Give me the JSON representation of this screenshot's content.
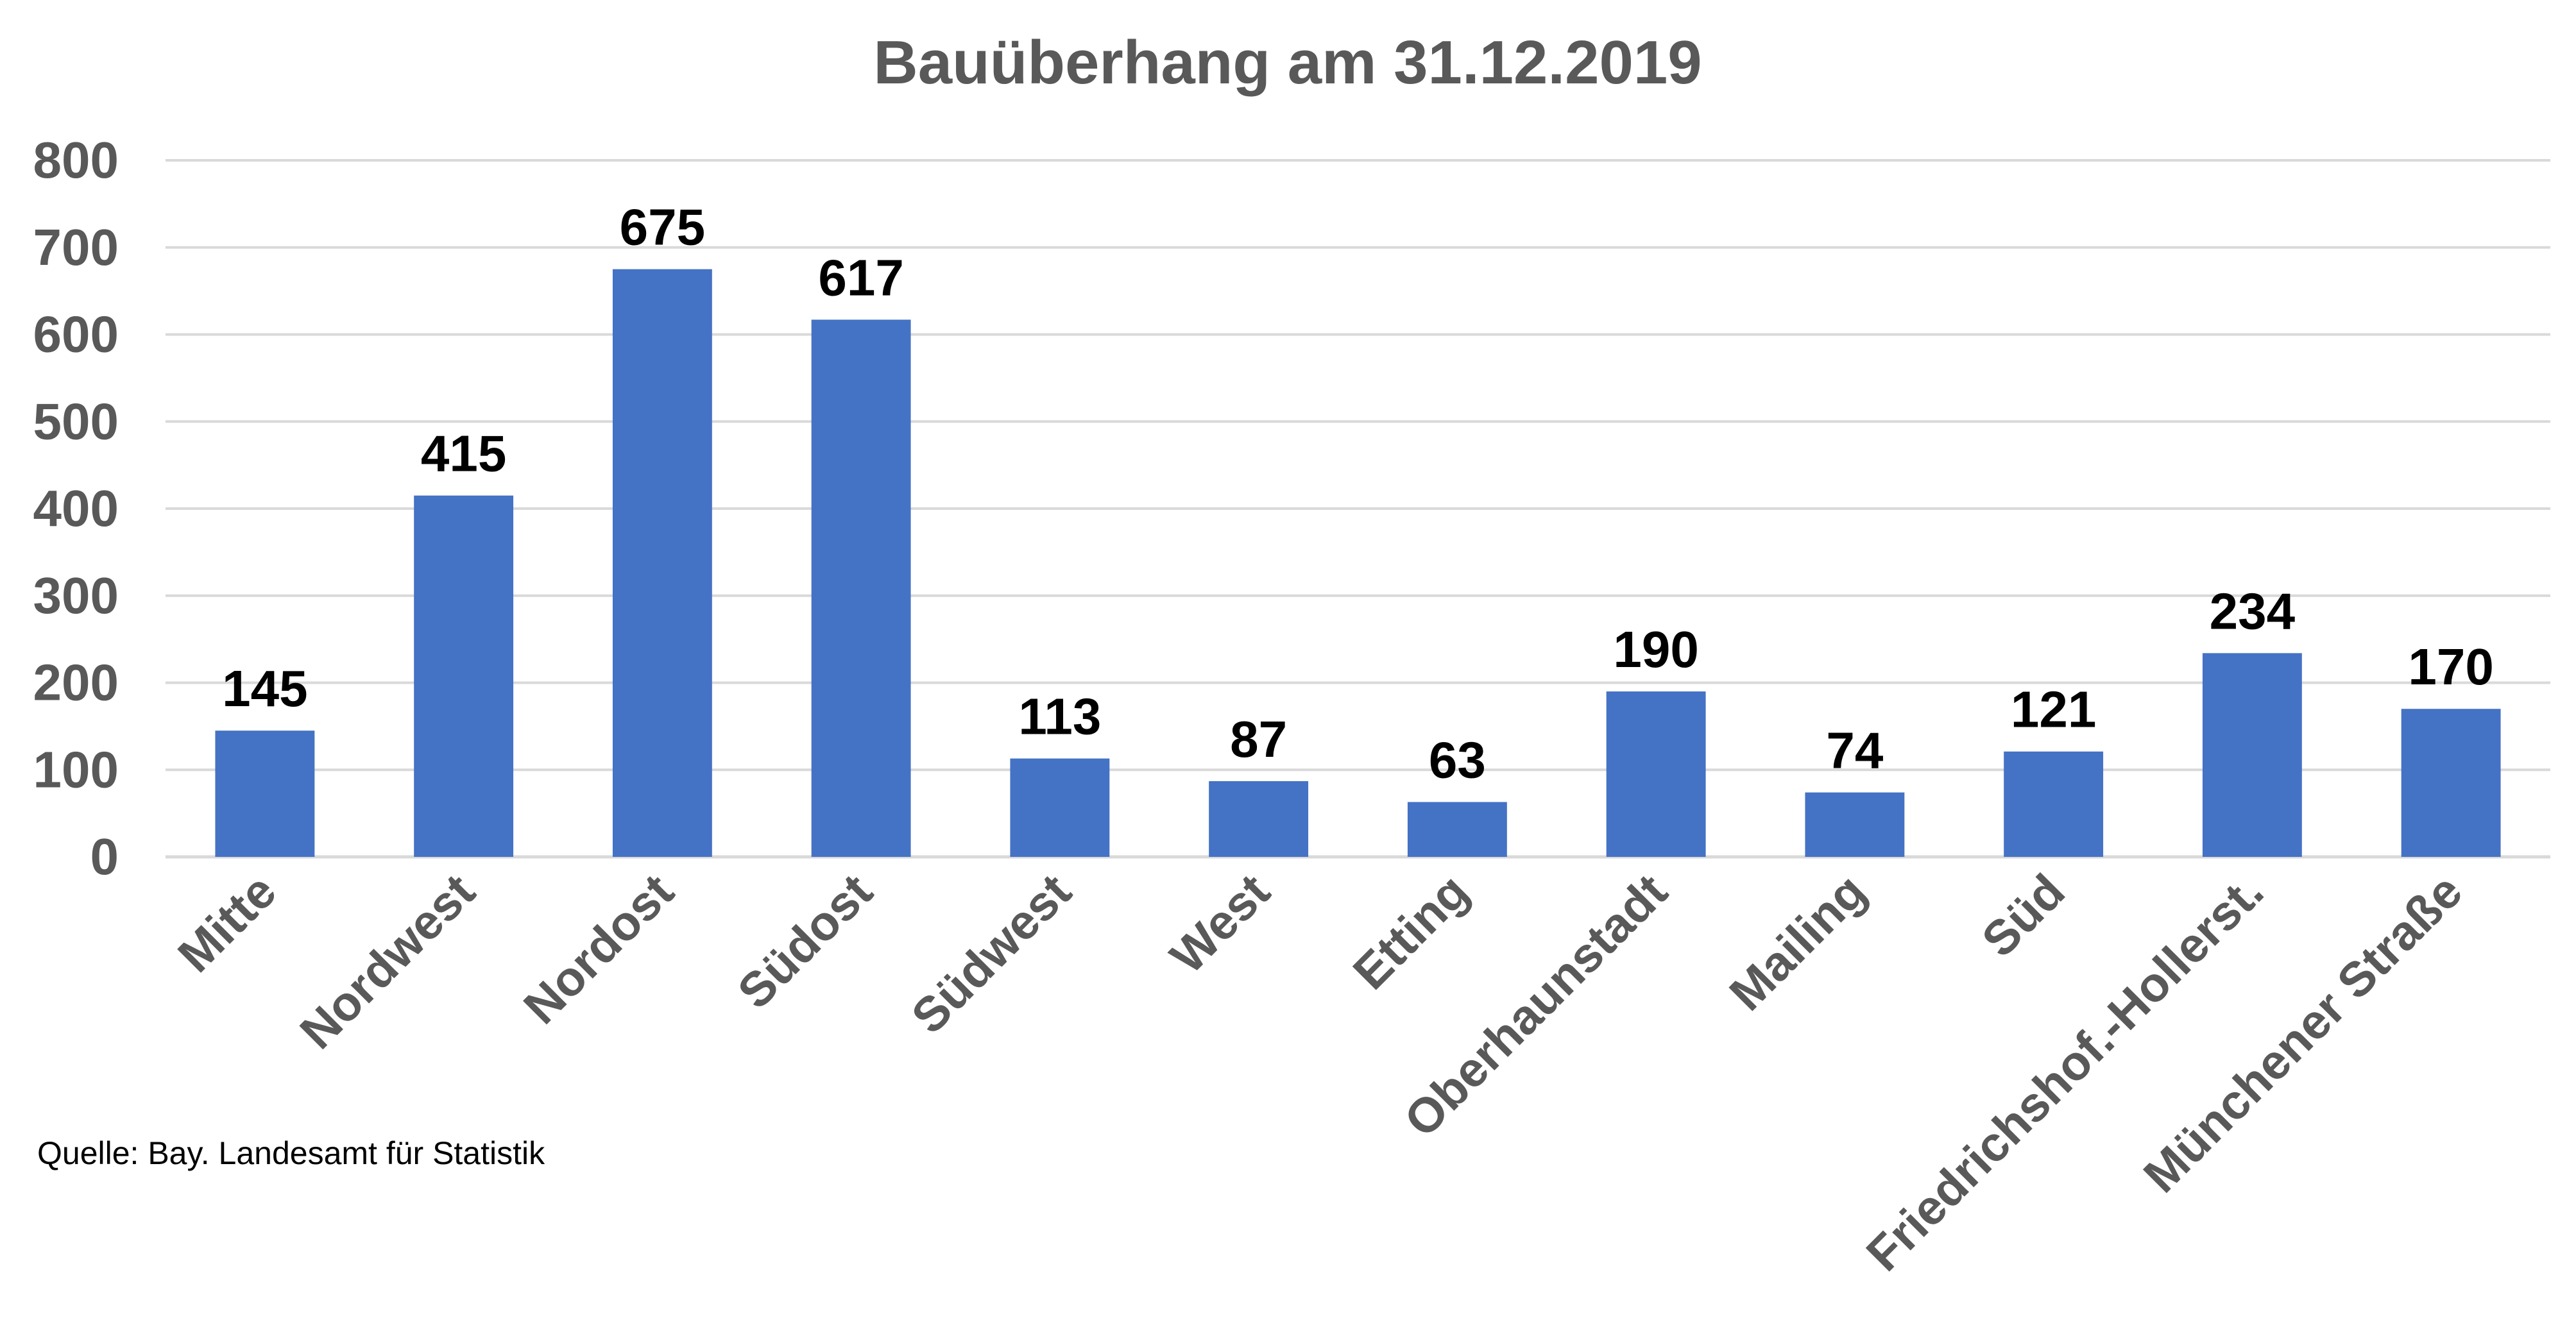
{
  "chart_data": {
    "type": "bar",
    "title": "Bauüberhang am 31.12.2019",
    "categories": [
      "Mitte",
      "Nordwest",
      "Nordost",
      "Südost",
      "Südwest",
      "West",
      "Etting",
      "Oberhaunstadt",
      "Mailing",
      "Süd",
      "Friedrichshof.-Hollerst.",
      "Münchener Straße"
    ],
    "values": [
      145,
      415,
      675,
      617,
      113,
      87,
      63,
      190,
      74,
      121,
      234,
      170
    ],
    "data_labels": [
      "145",
      "415",
      "675",
      "617",
      "113",
      "87",
      "63",
      "190",
      "74",
      "121",
      "234",
      "170"
    ],
    "y_ticks": [
      "0",
      "100",
      "200",
      "300",
      "400",
      "500",
      "600",
      "700",
      "800"
    ],
    "ylim": [
      0,
      800
    ],
    "grid": true,
    "legend": "none",
    "colors": {
      "bar": "#4472C4",
      "axis_text": "#595959",
      "grid": "#D9D9D9"
    }
  },
  "source_note": "Quelle: Bay. Landesamt für Statistik"
}
